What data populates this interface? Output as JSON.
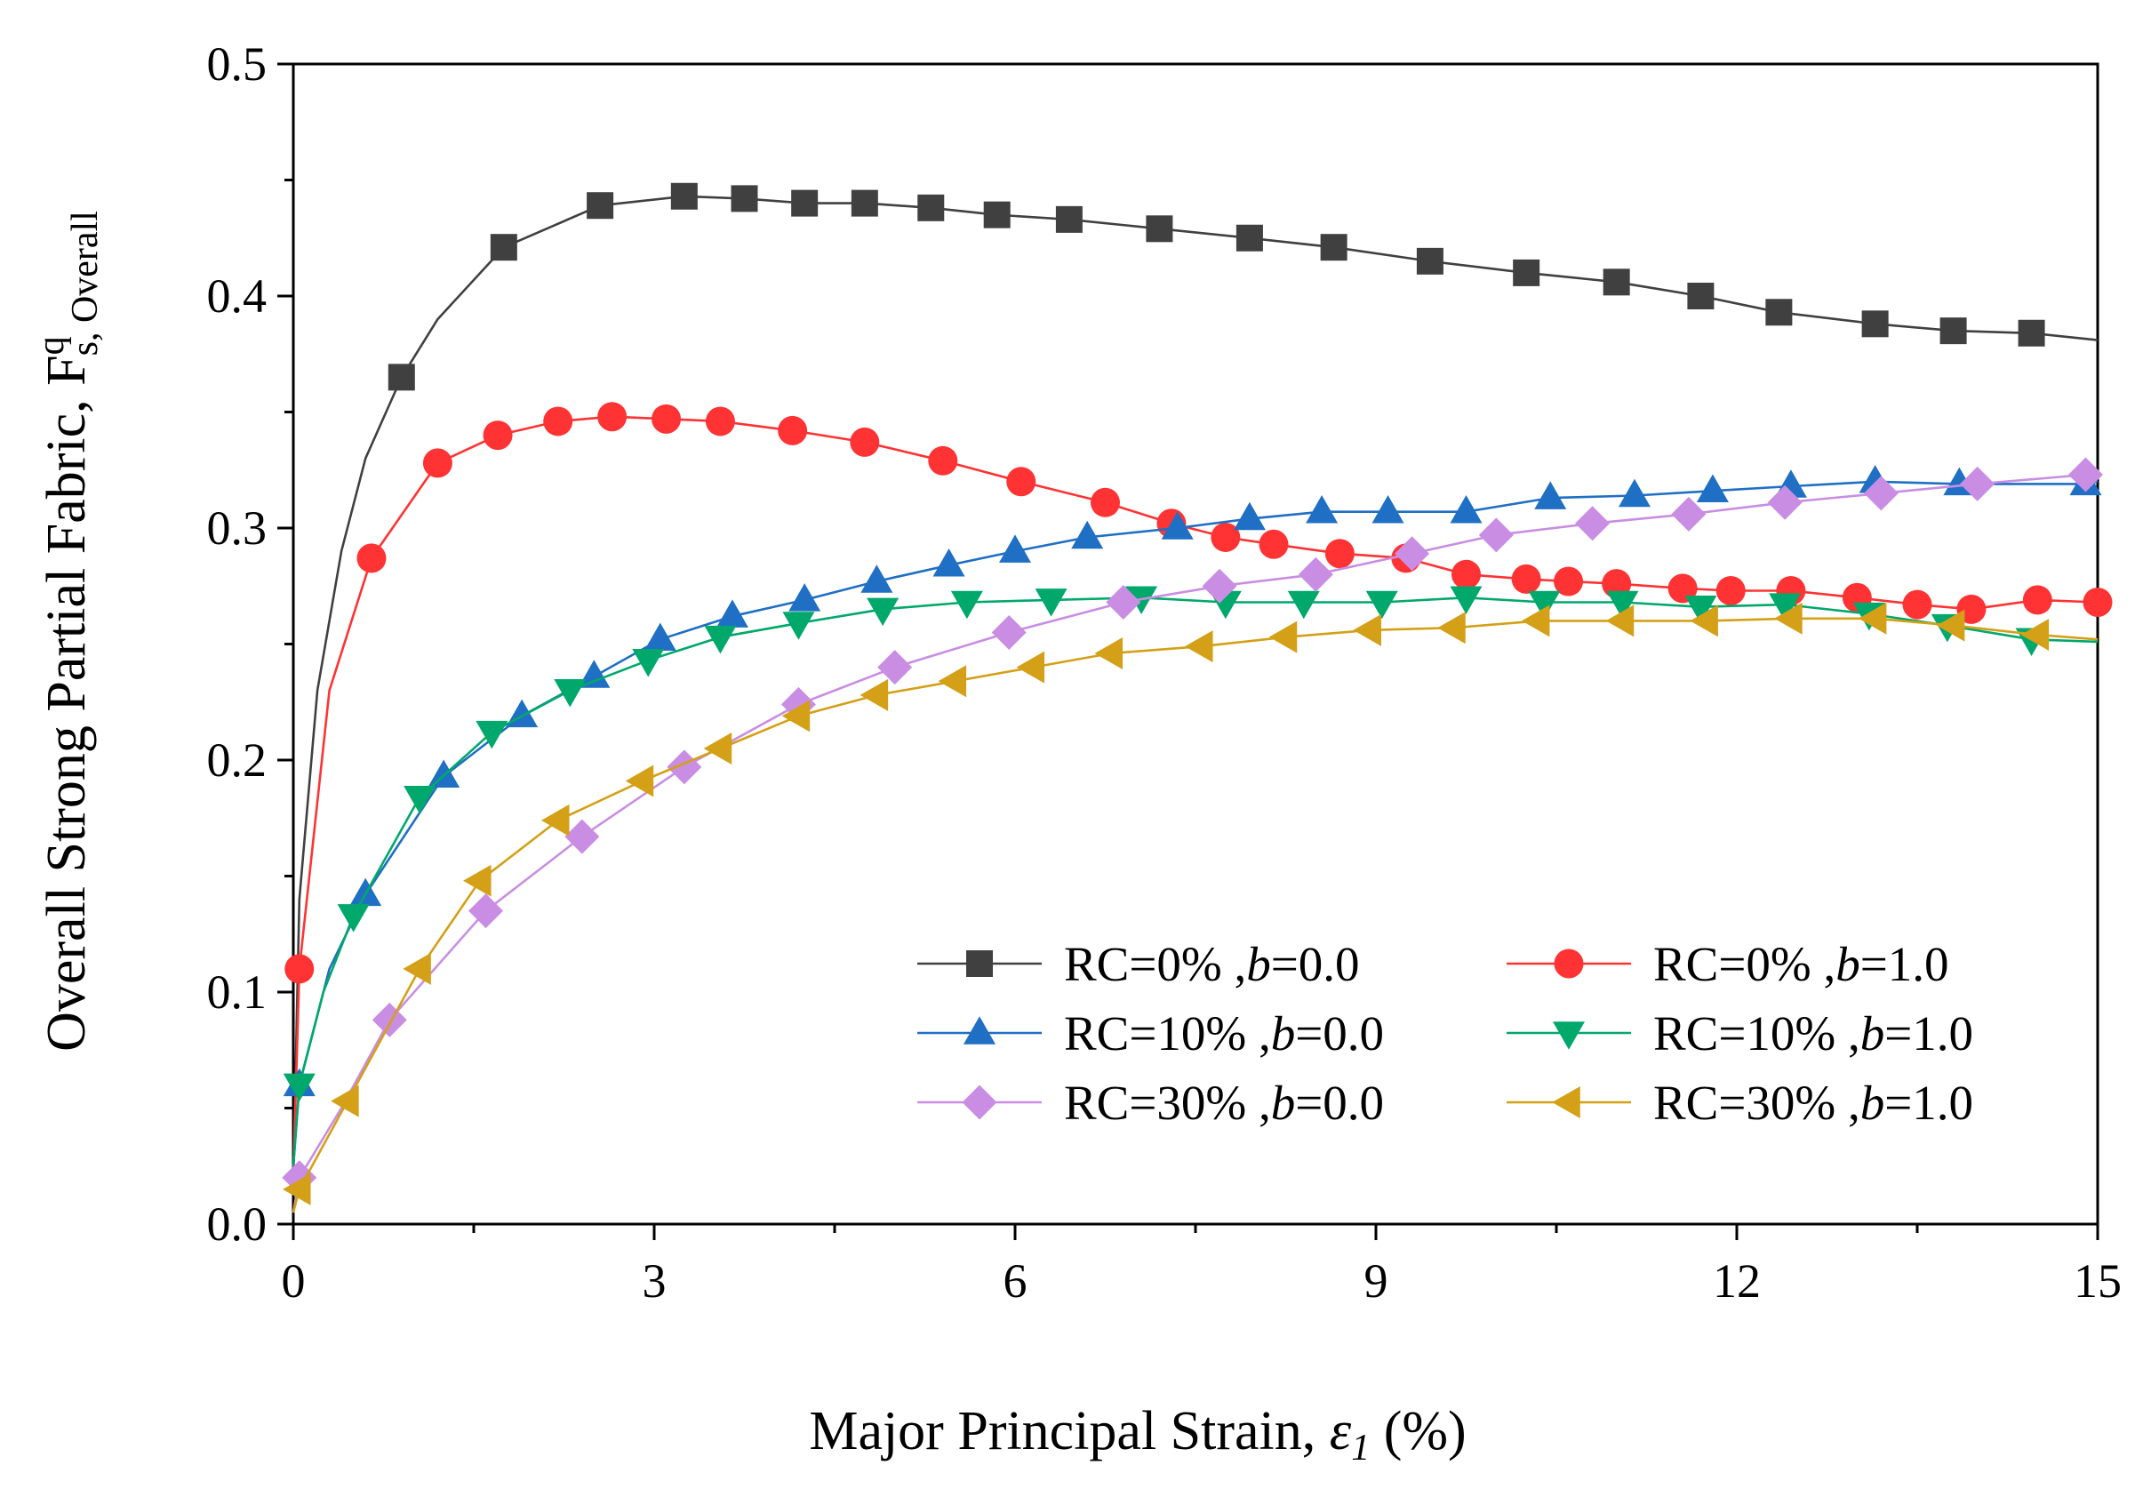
{
  "chart_data": {
    "type": "line",
    "xlabel": {
      "text": "Major Principal Strain, ",
      "symbol": "ε",
      "sub": "1",
      "unit": " (%)"
    },
    "ylabel": {
      "text": "Overall Strong Partial Fabric,  F",
      "sup": "q",
      "sub": "s, Overall"
    },
    "xlim": [
      0,
      15
    ],
    "ylim": [
      0,
      0.5
    ],
    "x_ticks": [
      "0",
      "3",
      "6",
      "9",
      "12",
      "15"
    ],
    "y_ticks": [
      "0.0",
      "0.1",
      "0.2",
      "0.3",
      "0.4",
      "0.5"
    ],
    "grid": false,
    "legend_position": "lower-right",
    "series": [
      {
        "name": "RC=0% ,b=0.0",
        "color": "#404040",
        "marker": "square",
        "x": [
          0,
          0.05,
          0.2,
          0.4,
          0.6,
          0.9,
          1.2,
          1.75,
          2.55,
          3.25,
          3.75,
          4.25,
          4.75,
          5.3,
          5.85,
          6.45,
          7.2,
          7.95,
          8.65,
          9.45,
          10.25,
          11.0,
          11.7,
          12.35,
          13.15,
          13.8,
          14.45,
          15.0
        ],
        "y": [
          0.02,
          0.14,
          0.23,
          0.29,
          0.33,
          0.365,
          0.39,
          0.421,
          0.439,
          0.443,
          0.442,
          0.44,
          0.44,
          0.438,
          0.435,
          0.433,
          0.429,
          0.425,
          0.421,
          0.415,
          0.41,
          0.406,
          0.4,
          0.393,
          0.388,
          0.385,
          0.384,
          0.381
        ],
        "markers_x": [
          0.9,
          1.75,
          2.55,
          3.25,
          3.75,
          4.25,
          4.75,
          5.3,
          5.85,
          6.45,
          7.2,
          7.95,
          8.65,
          9.45,
          10.25,
          11.0,
          11.7,
          12.35,
          13.15,
          13.8,
          14.45
        ]
      },
      {
        "name": "RC=0% ,b=1.0",
        "color": "#ff3333",
        "marker": "circle",
        "x": [
          0,
          0.05,
          0.3,
          0.65,
          1.2,
          1.7,
          2.2,
          2.65,
          3.1,
          3.55,
          4.15,
          4.75,
          5.4,
          6.05,
          6.75,
          7.3,
          7.75,
          8.15,
          8.7,
          9.25,
          9.75,
          10.25,
          10.6,
          11.0,
          11.55,
          11.95,
          12.45,
          13.0,
          13.5,
          13.95,
          14.5,
          15.0
        ],
        "y": [
          0.02,
          0.11,
          0.23,
          0.287,
          0.328,
          0.34,
          0.346,
          0.348,
          0.347,
          0.346,
          0.342,
          0.337,
          0.329,
          0.32,
          0.311,
          0.302,
          0.296,
          0.293,
          0.289,
          0.287,
          0.28,
          0.278,
          0.277,
          0.276,
          0.274,
          0.273,
          0.273,
          0.27,
          0.267,
          0.265,
          0.269,
          0.268
        ],
        "markers_x": [
          0.05,
          0.65,
          1.2,
          1.7,
          2.2,
          2.65,
          3.1,
          3.55,
          4.15,
          4.75,
          5.4,
          6.05,
          6.75,
          7.3,
          7.75,
          8.15,
          8.7,
          9.25,
          9.75,
          10.25,
          10.6,
          11.0,
          11.55,
          11.95,
          12.45,
          13.0,
          13.5,
          13.95,
          14.5,
          15.0
        ]
      },
      {
        "name": "RC=10% ,b=0.0",
        "color": "#1f6fc4",
        "marker": "triangle-up",
        "x": [
          0,
          0.05,
          0.3,
          0.6,
          1.25,
          1.9,
          2.5,
          3.05,
          3.65,
          4.25,
          4.85,
          5.45,
          6.0,
          6.6,
          7.35,
          7.95,
          8.55,
          9.1,
          9.75,
          10.45,
          11.15,
          11.8,
          12.45,
          13.15,
          13.85,
          14.9,
          15.0
        ],
        "y": [
          0.025,
          0.06,
          0.11,
          0.142,
          0.193,
          0.219,
          0.236,
          0.252,
          0.262,
          0.269,
          0.277,
          0.284,
          0.29,
          0.296,
          0.3,
          0.304,
          0.307,
          0.307,
          0.307,
          0.313,
          0.314,
          0.316,
          0.318,
          0.32,
          0.319,
          0.319,
          0.32
        ],
        "markers_x": [
          0.05,
          0.6,
          1.25,
          1.9,
          2.5,
          3.05,
          3.65,
          4.25,
          4.85,
          5.45,
          6.0,
          6.6,
          7.35,
          7.95,
          8.55,
          9.1,
          9.75,
          10.45,
          11.15,
          11.8,
          12.45,
          13.15,
          13.85,
          14.9
        ]
      },
      {
        "name": "RC=10% ,b=1.0",
        "color": "#00a86b",
        "marker": "triangle-down",
        "x": [
          0,
          0.05,
          0.25,
          0.5,
          1.05,
          1.65,
          2.3,
          2.95,
          3.55,
          4.2,
          4.9,
          5.6,
          6.3,
          7.05,
          7.75,
          8.4,
          9.05,
          9.75,
          10.4,
          11.05,
          11.7,
          12.4,
          13.1,
          13.75,
          14.45,
          15.0
        ],
        "y": [
          0.025,
          0.06,
          0.1,
          0.133,
          0.184,
          0.212,
          0.23,
          0.243,
          0.253,
          0.259,
          0.265,
          0.268,
          0.269,
          0.27,
          0.268,
          0.268,
          0.268,
          0.27,
          0.268,
          0.268,
          0.266,
          0.267,
          0.263,
          0.258,
          0.252,
          0.251
        ],
        "markers_x": [
          0.05,
          0.5,
          1.05,
          1.65,
          2.3,
          2.95,
          3.55,
          4.2,
          4.9,
          5.6,
          6.3,
          7.05,
          7.75,
          8.4,
          9.05,
          9.75,
          10.4,
          11.05,
          11.7,
          12.4,
          13.1,
          13.75,
          14.45
        ]
      },
      {
        "name": "RC=30% ,b=0.0",
        "color": "#c98ee3",
        "marker": "diamond",
        "x": [
          0,
          0.05,
          0.4,
          0.8,
          1.6,
          2.4,
          3.25,
          4.2,
          5.0,
          5.95,
          6.9,
          7.7,
          8.5,
          9.3,
          10.0,
          10.8,
          11.6,
          12.4,
          13.2,
          14.0,
          14.9,
          15.0
        ],
        "y": [
          0.005,
          0.02,
          0.05,
          0.088,
          0.135,
          0.167,
          0.197,
          0.224,
          0.24,
          0.255,
          0.268,
          0.275,
          0.28,
          0.289,
          0.297,
          0.302,
          0.306,
          0.311,
          0.315,
          0.319,
          0.323,
          0.323
        ],
        "markers_x": [
          0.05,
          0.8,
          1.6,
          2.4,
          3.25,
          4.2,
          5.0,
          5.95,
          6.9,
          7.7,
          8.5,
          9.3,
          10.0,
          10.8,
          11.6,
          12.4,
          13.2,
          14.0,
          14.9
        ]
      },
      {
        "name": "RC=30% ,b=1.0",
        "color": "#d4a017",
        "marker": "triangle-left",
        "x": [
          0,
          0.05,
          0.45,
          1.05,
          1.55,
          2.2,
          2.9,
          3.55,
          4.2,
          4.85,
          5.5,
          6.15,
          6.8,
          7.55,
          8.25,
          8.95,
          9.65,
          10.35,
          11.05,
          11.75,
          12.45,
          13.15,
          13.8,
          14.5,
          15.0
        ],
        "y": [
          0.005,
          0.015,
          0.053,
          0.11,
          0.148,
          0.174,
          0.191,
          0.205,
          0.219,
          0.228,
          0.234,
          0.24,
          0.246,
          0.249,
          0.253,
          0.256,
          0.257,
          0.26,
          0.26,
          0.26,
          0.261,
          0.261,
          0.258,
          0.254,
          0.252
        ],
        "markers_x": [
          0.05,
          0.45,
          1.05,
          1.55,
          2.2,
          2.9,
          3.55,
          4.2,
          4.85,
          5.5,
          6.15,
          6.8,
          7.55,
          8.25,
          8.95,
          9.65,
          10.35,
          11.05,
          11.75,
          12.45,
          13.15,
          13.8,
          14.5
        ]
      }
    ]
  }
}
